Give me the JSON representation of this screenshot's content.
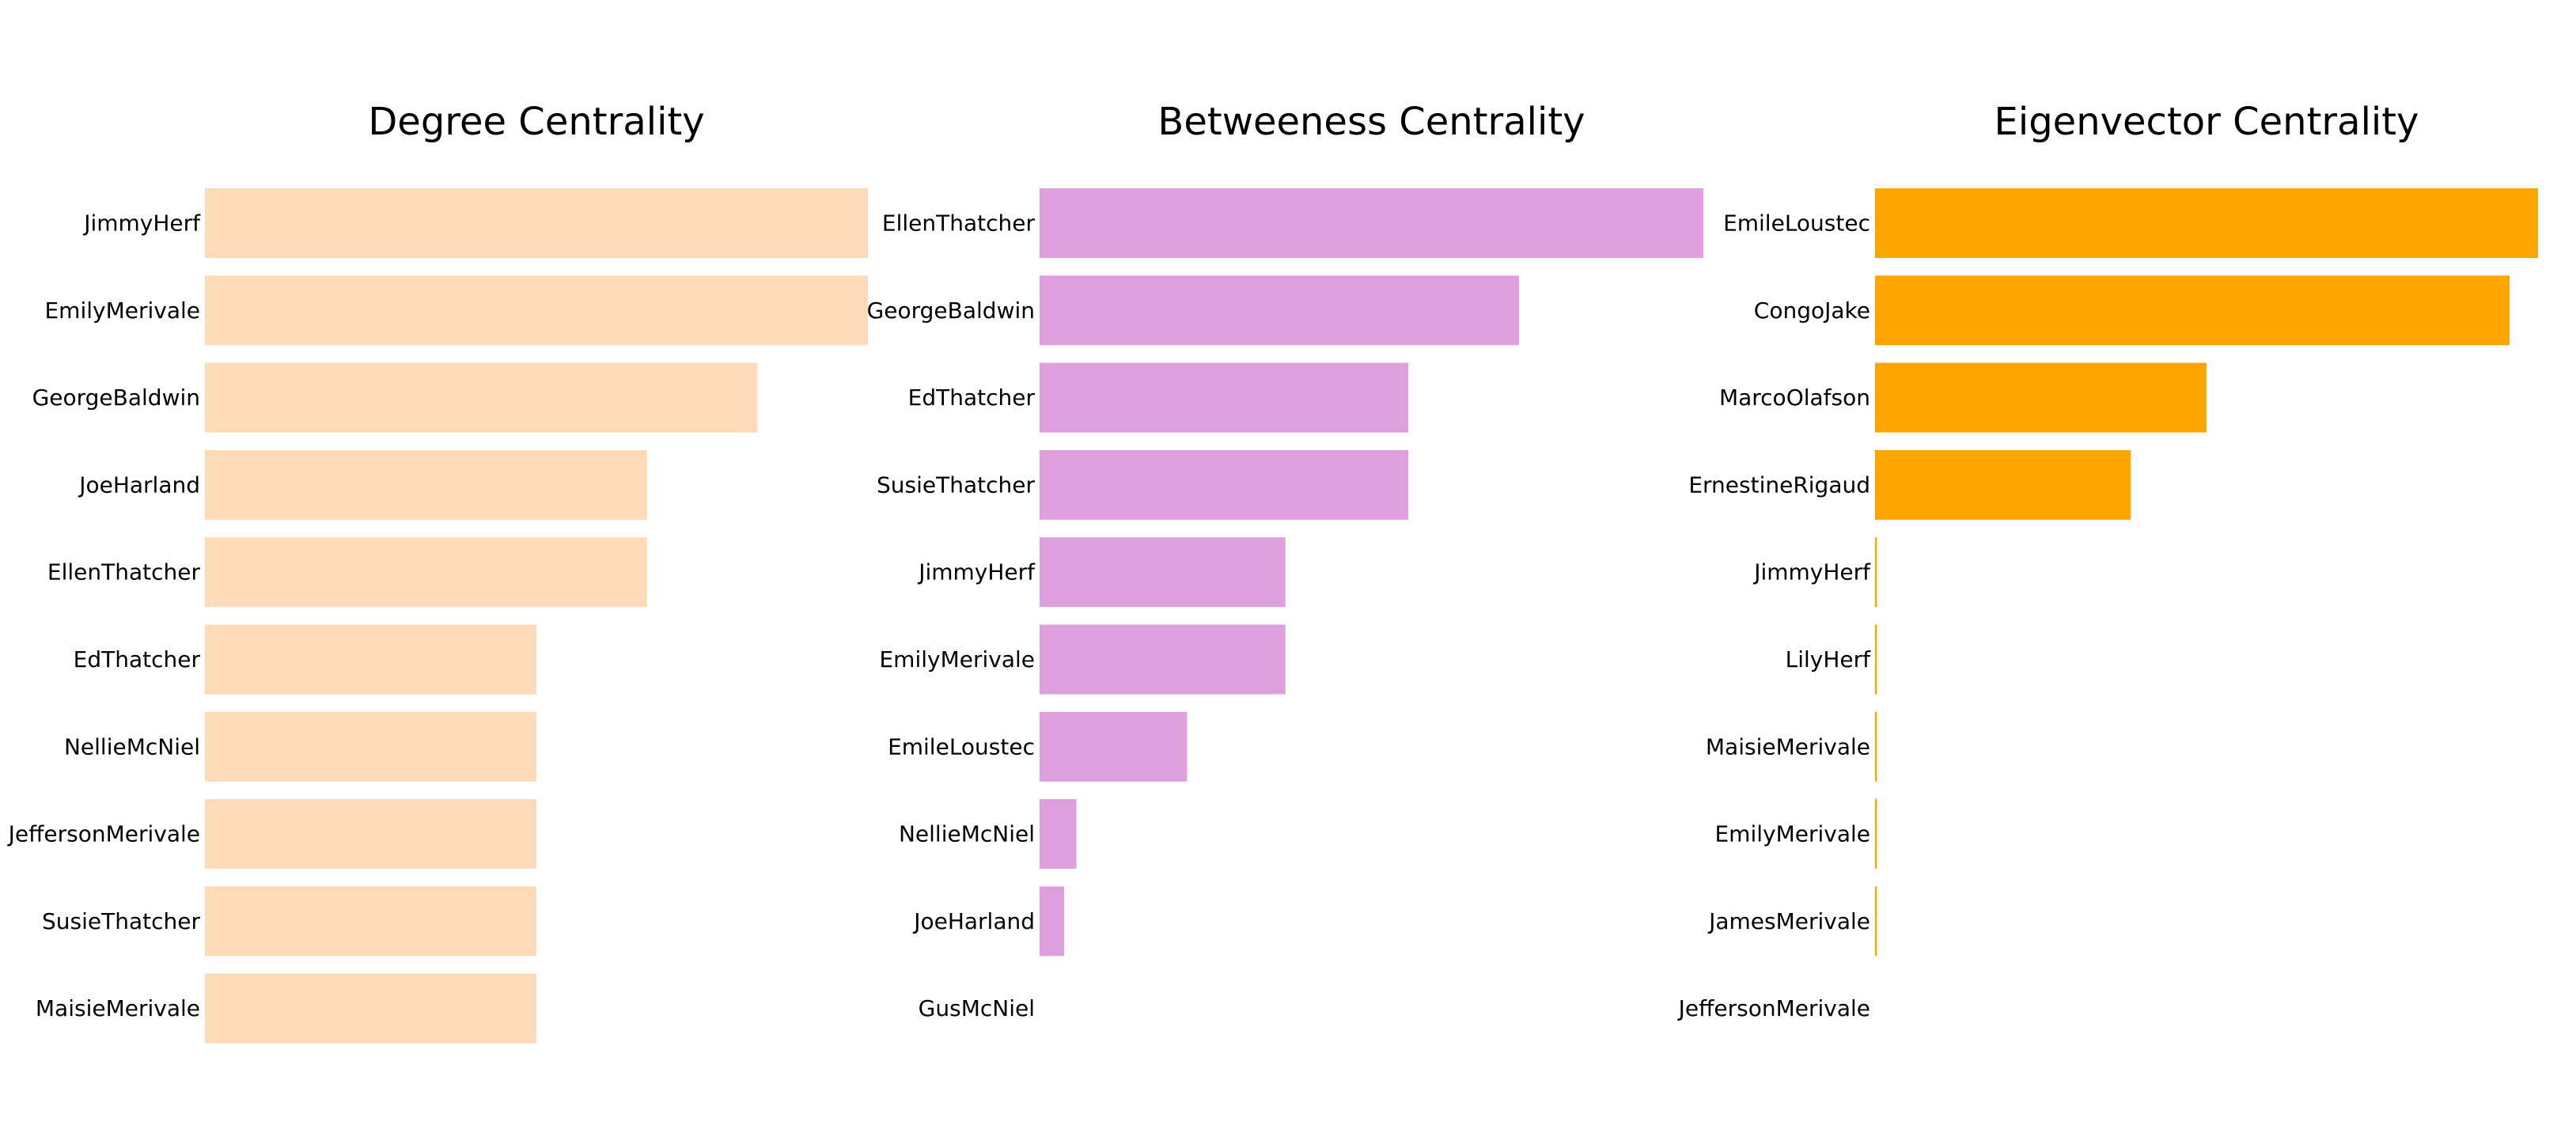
{
  "chart_data": [
    {
      "type": "bar",
      "orientation": "horizontal",
      "title": "Degree Centrality",
      "color": "#FFDAB9",
      "categories": [
        "JimmyHerf",
        "EmilyMerivale",
        "GeorgeBaldwin",
        "JoeHarland",
        "EllenThatcher",
        "EdThatcher",
        "NellieMcNiel",
        "JeffersonMerivale",
        "SusieThatcher",
        "MaisieMerivale"
      ],
      "values": [
        6,
        6,
        5,
        4,
        4,
        3,
        3,
        3,
        3,
        3
      ],
      "xlim": [
        0,
        6
      ],
      "axes_visible": false,
      "grid": false
    },
    {
      "type": "bar",
      "orientation": "horizontal",
      "title": "Betweeness Centrality",
      "color": "#DDA0DD",
      "categories": [
        "EllenThatcher",
        "GeorgeBaldwin",
        "EdThatcher",
        "SusieThatcher",
        "JimmyHerf",
        "EmilyMerivale",
        "EmileLoustec",
        "NellieMcNiel",
        "JoeHarland",
        "GusMcNiel"
      ],
      "values": [
        0.54,
        0.39,
        0.3,
        0.3,
        0.2,
        0.2,
        0.12,
        0.03,
        0.02,
        0.0
      ],
      "xlim": [
        0,
        0.54
      ],
      "axes_visible": false,
      "grid": false
    },
    {
      "type": "bar",
      "orientation": "horizontal",
      "title": "Eigenvector Centrality",
      "color": "#FFA500",
      "categories": [
        "EmileLoustec",
        "CongoJake",
        "MarcoOlafson",
        "ErnestineRigaud",
        "JimmyHerf",
        "LilyHerf",
        "MaisieMerivale",
        "EmilyMerivale",
        "JamesMerivale",
        "JeffersonMerivale"
      ],
      "values": [
        0.7,
        0.67,
        0.35,
        0.27,
        0.002,
        0.002,
        0.002,
        0.002,
        0.002,
        0.0
      ],
      "xlim": [
        0,
        0.7
      ],
      "axes_visible": false,
      "grid": false
    }
  ]
}
